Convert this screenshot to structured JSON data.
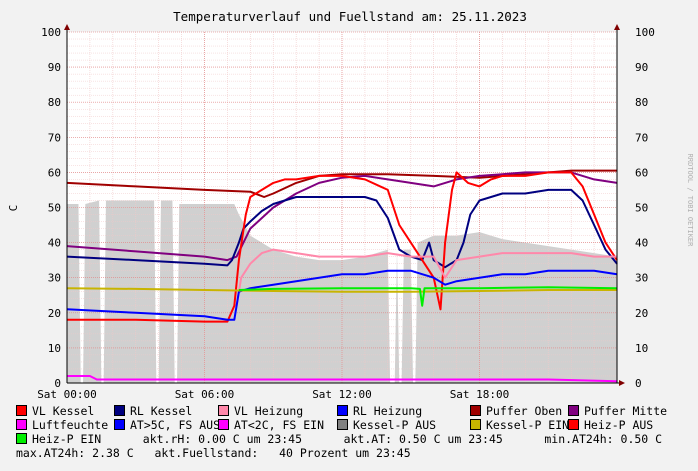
{
  "chart_data": {
    "type": "line",
    "title": "Temperaturverlauf und Fuellstand am: 25.11.2023",
    "ylabel": "C",
    "ylim": [
      0,
      100
    ],
    "yticks": [
      0,
      10,
      20,
      30,
      40,
      50,
      60,
      70,
      80,
      90,
      100
    ],
    "xlim": [
      0,
      24
    ],
    "xticks": [
      {
        "v": 0,
        "label": "Sat 00:00"
      },
      {
        "v": 6,
        "label": "Sat 06:00"
      },
      {
        "v": 12,
        "label": "Sat 12:00"
      },
      {
        "v": 18,
        "label": "Sat 18:00"
      }
    ],
    "watermark": "RRDTOOL / TOBI OETIKER",
    "fill": {
      "color": "#d0d0d0",
      "points": [
        [
          0,
          51
        ],
        [
          0.5,
          51
        ],
        [
          0.6,
          0
        ],
        [
          0.7,
          0
        ],
        [
          0.8,
          51
        ],
        [
          1.4,
          52
        ],
        [
          1.5,
          0
        ],
        [
          1.6,
          0
        ],
        [
          1.7,
          52
        ],
        [
          3.8,
          52
        ],
        [
          3.9,
          0
        ],
        [
          4.0,
          0
        ],
        [
          4.1,
          52
        ],
        [
          4.6,
          52
        ],
        [
          4.7,
          0
        ],
        [
          4.8,
          0
        ],
        [
          4.9,
          51
        ],
        [
          7.3,
          51
        ],
        [
          7.5,
          48
        ],
        [
          8,
          42
        ],
        [
          9,
          38
        ],
        [
          10,
          36
        ],
        [
          11,
          35
        ],
        [
          12,
          35
        ],
        [
          13,
          36
        ],
        [
          14,
          38
        ],
        [
          14.1,
          0
        ],
        [
          14.3,
          0
        ],
        [
          14.4,
          38
        ],
        [
          14.5,
          0
        ],
        [
          14.6,
          0
        ],
        [
          14.7,
          38
        ],
        [
          15,
          38
        ],
        [
          15.1,
          0
        ],
        [
          15.2,
          0
        ],
        [
          15.3,
          40
        ],
        [
          16,
          42
        ],
        [
          17,
          42
        ],
        [
          18,
          43
        ],
        [
          19,
          41
        ],
        [
          20,
          40
        ],
        [
          21,
          39
        ],
        [
          22,
          38
        ],
        [
          23,
          37
        ],
        [
          24,
          36
        ]
      ]
    },
    "series": [
      {
        "name": "Puffer Oben",
        "color": "#a00000",
        "points": [
          [
            0,
            57
          ],
          [
            3,
            56
          ],
          [
            6,
            55
          ],
          [
            8,
            54.5
          ],
          [
            8.6,
            53
          ],
          [
            9,
            54
          ],
          [
            10,
            57
          ],
          [
            11,
            59
          ],
          [
            12,
            59.5
          ],
          [
            14,
            59.5
          ],
          [
            16,
            59
          ],
          [
            18,
            58.5
          ],
          [
            20,
            59.5
          ],
          [
            22,
            60.5
          ],
          [
            24,
            60.5
          ]
        ]
      },
      {
        "name": "Puffer Mitte",
        "color": "#800080",
        "points": [
          [
            0,
            39
          ],
          [
            3,
            37.5
          ],
          [
            6,
            36
          ],
          [
            7,
            35
          ],
          [
            7.4,
            36
          ],
          [
            8,
            44
          ],
          [
            9,
            50
          ],
          [
            10,
            54
          ],
          [
            11,
            57
          ],
          [
            12,
            58.5
          ],
          [
            13,
            59
          ],
          [
            14,
            58
          ],
          [
            15,
            57
          ],
          [
            16,
            56
          ],
          [
            17,
            58
          ],
          [
            18,
            59
          ],
          [
            19,
            59.5
          ],
          [
            20,
            60
          ],
          [
            22,
            60
          ],
          [
            23,
            58
          ],
          [
            24,
            57
          ]
        ]
      },
      {
        "name": "RL Kessel",
        "color": "#000080",
        "points": [
          [
            0,
            36
          ],
          [
            3,
            35
          ],
          [
            6,
            34
          ],
          [
            7,
            33.5
          ],
          [
            7.2,
            35
          ],
          [
            7.5,
            40
          ],
          [
            7.7,
            44
          ],
          [
            8,
            46
          ],
          [
            8.5,
            49
          ],
          [
            9,
            51
          ],
          [
            9.5,
            52
          ],
          [
            10,
            53
          ],
          [
            11,
            53
          ],
          [
            12,
            53
          ],
          [
            13,
            53
          ],
          [
            13.5,
            52
          ],
          [
            14,
            47
          ],
          [
            14.5,
            38
          ],
          [
            15,
            36
          ],
          [
            15.5,
            35
          ],
          [
            15.8,
            40
          ],
          [
            16,
            35
          ],
          [
            16.5,
            33
          ],
          [
            17,
            35
          ],
          [
            17.3,
            40
          ],
          [
            17.6,
            48
          ],
          [
            18,
            52
          ],
          [
            18.5,
            53
          ],
          [
            19,
            54
          ],
          [
            20,
            54
          ],
          [
            21,
            55
          ],
          [
            22,
            55
          ],
          [
            22.5,
            52
          ],
          [
            23,
            45
          ],
          [
            23.5,
            38
          ],
          [
            24,
            34
          ]
        ]
      },
      {
        "name": "VL Kessel",
        "color": "#ff0000",
        "points": [
          [
            0,
            18
          ],
          [
            3,
            18
          ],
          [
            6,
            17.5
          ],
          [
            7,
            17.5
          ],
          [
            7.3,
            22
          ],
          [
            7.5,
            35
          ],
          [
            7.8,
            48
          ],
          [
            8,
            53
          ],
          [
            8.5,
            55
          ],
          [
            9,
            57
          ],
          [
            9.5,
            58
          ],
          [
            10,
            58
          ],
          [
            11,
            59
          ],
          [
            12,
            59
          ],
          [
            13,
            58
          ],
          [
            14,
            55
          ],
          [
            14.5,
            45
          ],
          [
            15,
            40
          ],
          [
            15.5,
            35
          ],
          [
            16,
            30
          ],
          [
            16.3,
            21
          ],
          [
            16.5,
            40
          ],
          [
            16.8,
            55
          ],
          [
            17,
            60
          ],
          [
            17.5,
            57
          ],
          [
            18,
            56
          ],
          [
            18.5,
            58
          ],
          [
            19,
            59
          ],
          [
            20,
            59
          ],
          [
            21,
            60
          ],
          [
            22,
            60
          ],
          [
            22.5,
            56
          ],
          [
            23,
            48
          ],
          [
            23.5,
            40
          ],
          [
            24,
            35
          ]
        ]
      },
      {
        "name": "VL Heizung",
        "color": "#ff88aa",
        "points": [
          [
            7.4,
            22
          ],
          [
            7.6,
            30
          ],
          [
            8,
            34
          ],
          [
            8.5,
            37
          ],
          [
            9,
            38
          ],
          [
            10,
            37
          ],
          [
            11,
            36
          ],
          [
            12,
            36
          ],
          [
            13,
            36
          ],
          [
            14,
            37
          ],
          [
            15,
            36
          ],
          [
            16,
            36
          ],
          [
            16.5,
            30
          ],
          [
            17,
            35
          ],
          [
            18,
            36
          ],
          [
            19,
            37
          ],
          [
            20,
            37
          ],
          [
            21,
            37
          ],
          [
            22,
            37
          ],
          [
            23,
            36
          ],
          [
            24,
            36
          ]
        ]
      },
      {
        "name": "RL Heizung",
        "color": "#0000ff",
        "points": [
          [
            0,
            21
          ],
          [
            3,
            20
          ],
          [
            6,
            19
          ],
          [
            7,
            18
          ],
          [
            7.3,
            18
          ],
          [
            7.5,
            26
          ],
          [
            8,
            27
          ],
          [
            9,
            28
          ],
          [
            10,
            29
          ],
          [
            11,
            30
          ],
          [
            12,
            31
          ],
          [
            13,
            31
          ],
          [
            14,
            32
          ],
          [
            15,
            32
          ],
          [
            15.5,
            31
          ],
          [
            16,
            30
          ],
          [
            16.5,
            28
          ],
          [
            17,
            29
          ],
          [
            18,
            30
          ],
          [
            19,
            31
          ],
          [
            20,
            31
          ],
          [
            21,
            32
          ],
          [
            22,
            32
          ],
          [
            23,
            32
          ],
          [
            24,
            31
          ]
        ]
      },
      {
        "name": "Kessel-P EIN",
        "color": "#c8b400",
        "points": [
          [
            0,
            27
          ],
          [
            3,
            26.8
          ],
          [
            6,
            26.5
          ],
          [
            9,
            26.2
          ],
          [
            12,
            26
          ],
          [
            15,
            26
          ],
          [
            18,
            26.2
          ],
          [
            21,
            26.5
          ],
          [
            24,
            26.5
          ]
        ]
      },
      {
        "name": "Heiz-P EIN",
        "color": "#00ee00",
        "points": [
          [
            7.5,
            26.5
          ],
          [
            9,
            26.8
          ],
          [
            12,
            27
          ],
          [
            15,
            27
          ],
          [
            15.4,
            26.8
          ],
          [
            15.5,
            22
          ],
          [
            15.6,
            27
          ],
          [
            18,
            27
          ],
          [
            21,
            27.3
          ],
          [
            24,
            27
          ]
        ]
      },
      {
        "name": "Luftfeuchte",
        "color": "#ff00ff",
        "points": [
          [
            0,
            2
          ],
          [
            1,
            2
          ],
          [
            1.3,
            1
          ],
          [
            3,
            1
          ],
          [
            6,
            1
          ],
          [
            9,
            1
          ],
          [
            12,
            1
          ],
          [
            15,
            1
          ],
          [
            18,
            1
          ],
          [
            21,
            1
          ],
          [
            24,
            0.5
          ]
        ]
      }
    ]
  },
  "legend": {
    "row1": [
      {
        "label": "VL Kessel",
        "color": "#ff0000"
      },
      {
        "label": "RL Kessel",
        "color": "#000080"
      },
      {
        "label": "VL Heizung",
        "color": "#ff88aa"
      },
      {
        "label": "RL Heizung",
        "color": "#0000ff"
      },
      {
        "label": "Puffer Oben",
        "color": "#a00000"
      },
      {
        "label": "Puffer Mitte",
        "color": "#800080"
      }
    ],
    "row2": [
      {
        "label": "Luftfeuchte",
        "color": "#ff00ff"
      },
      {
        "label": "AT>5C, FS AUS",
        "color": "#0000ff"
      },
      {
        "label": "AT<2C, FS EIN",
        "color": "#ff00ff"
      },
      {
        "label": "Kessel-P AUS",
        "color": "#808080"
      },
      {
        "label": "Kessel-P EIN",
        "color": "#c8b400"
      },
      {
        "label": "Heiz-P AUS",
        "color": "#ff0000"
      }
    ],
    "row3_swatch": {
      "label": "Heiz-P EIN",
      "color": "#00ee00"
    },
    "row3_text": "      akt.rH: 0.00 C um 23:45      akt.AT: 0.50 C um 23:45      min.AT24h: 0.50 C",
    "row4_text": "max.AT24h: 2.38 C   akt.Fuellstand:   40 Prozent um 23:45"
  }
}
